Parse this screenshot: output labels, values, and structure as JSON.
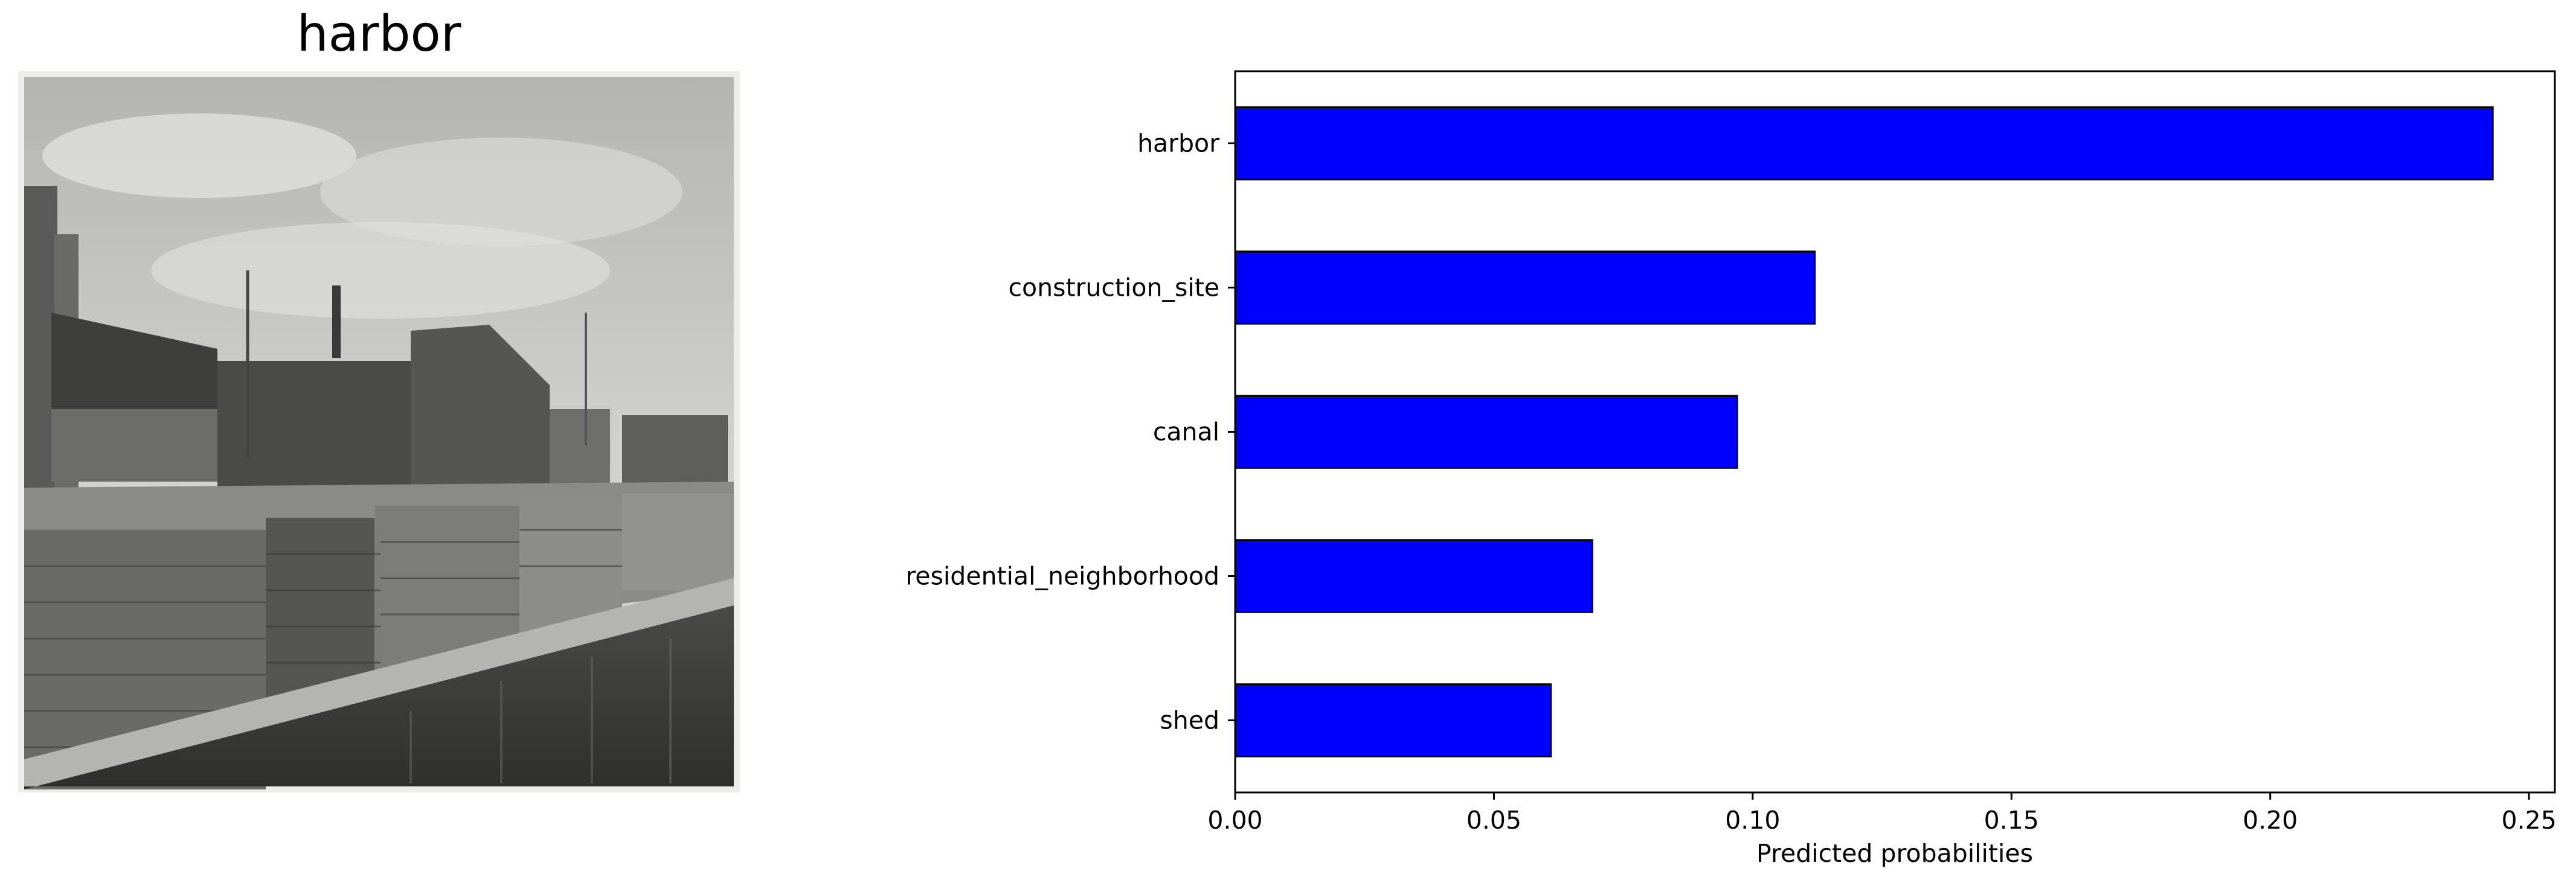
{
  "photo": {
    "title": "harbor",
    "icon": "harbor-photo-image"
  },
  "chart_data": {
    "type": "bar",
    "orientation": "horizontal",
    "categories": [
      "harbor",
      "construction_site",
      "canal",
      "residential_neighborhood",
      "shed"
    ],
    "values": [
      0.243,
      0.112,
      0.097,
      0.069,
      0.061
    ],
    "xlabel": "Predicted probabilities",
    "ylabel": "",
    "xlim": [
      0,
      0.255
    ],
    "xticks": [
      0.0,
      0.05,
      0.1,
      0.15,
      0.2,
      0.25
    ],
    "xtick_labels": [
      "0.00",
      "0.05",
      "0.10",
      "0.15",
      "0.20",
      "0.25"
    ],
    "bar_color": "#0000ff",
    "edge_color": "#000000",
    "grid": false,
    "legend": "none"
  }
}
